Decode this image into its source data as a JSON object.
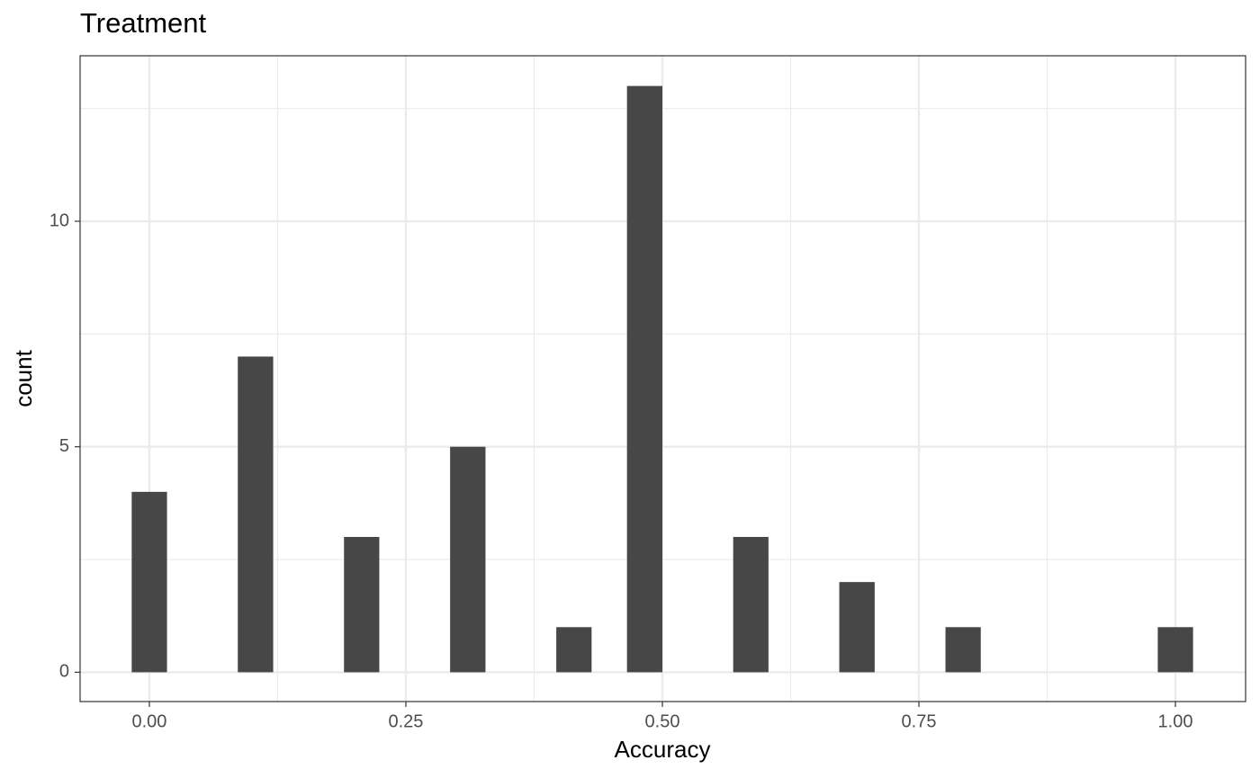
{
  "chart_data": {
    "type": "histogram",
    "title": "Treatment",
    "x_label": "Accuracy",
    "y_label": "count",
    "bins": [
      -0.0172,
      0.0172,
      0.0517,
      0.0862,
      0.1207,
      0.1552,
      0.1897,
      0.2241,
      0.2586,
      0.2931,
      0.3276,
      0.3621,
      0.3966,
      0.431,
      0.4655,
      0.5,
      0.5345,
      0.569,
      0.6034,
      0.6379,
      0.6724,
      0.7069,
      0.7414,
      0.7759,
      0.8103,
      0.8448,
      0.8793,
      0.9138,
      0.9483,
      0.9828,
      1.0172
    ],
    "values": [
      4,
      0,
      0,
      7,
      0,
      0,
      3,
      0,
      0,
      5,
      0,
      0,
      1,
      0,
      13,
      0,
      0,
      3,
      0,
      0,
      2,
      0,
      0,
      1,
      0,
      0,
      0,
      0,
      0,
      1
    ],
    "color": "#474747",
    "xlim": [
      -0.0675,
      1.0684
    ],
    "ylim": [
      -0.65,
      13.67
    ],
    "xticks": [
      {
        "value": 0,
        "label": "0.00"
      },
      {
        "value": 0.25,
        "label": "0.25"
      },
      {
        "value": 0.5,
        "label": "0.50"
      },
      {
        "value": 0.75,
        "label": "0.75"
      },
      {
        "value": 1,
        "label": "1.00"
      }
    ],
    "yticks": [
      0,
      5,
      10
    ],
    "grid": true
  }
}
